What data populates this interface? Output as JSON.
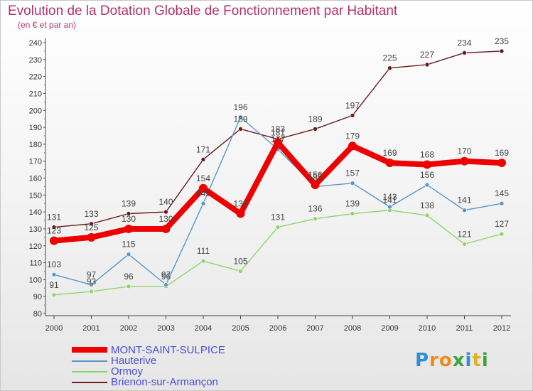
{
  "chart_data": {
    "type": "line",
    "title": "Evolution de la Dotation Globale de Fonctionnement par Habitant",
    "subtitle": "(en € et par an)",
    "x": [
      "2000",
      "2001",
      "2002",
      "2003",
      "2004",
      "2005",
      "2006",
      "2007",
      "2008",
      "2009",
      "2010",
      "2011",
      "2012"
    ],
    "ylim": [
      80,
      240
    ],
    "yticks": [
      80,
      90,
      100,
      110,
      120,
      130,
      140,
      150,
      160,
      170,
      180,
      190,
      200,
      210,
      220,
      230,
      240
    ],
    "grid": false,
    "legend_position": "bottom-left",
    "series": [
      {
        "name": "Brienon-sur-Armançon",
        "color": "#6b1a1a",
        "values": [
          131,
          133,
          139,
          140,
          171,
          189,
          183,
          189,
          197,
          225,
          227,
          234,
          235
        ]
      },
      {
        "name": "Ormoy",
        "color": "#8fd46a",
        "values": [
          91,
          93,
          96,
          96,
          111,
          105,
          131,
          136,
          139,
          141,
          138,
          121,
          127
        ]
      },
      {
        "name": "Hauterive",
        "color": "#5a96c8",
        "values": [
          103,
          97,
          115,
          97,
          145,
          196,
          177,
          155,
          157,
          143,
          156,
          141,
          145
        ]
      },
      {
        "name": "MONT-SAINT-SULPICE",
        "color": "#ee0000",
        "values": [
          123,
          125,
          130,
          130,
          154,
          139,
          181,
          156,
          179,
          169,
          168,
          170,
          169
        ]
      }
    ]
  },
  "legend": [
    {
      "label": "MONT-SAINT-SULPICE",
      "color": "#ee0000",
      "label_color": "#4b4bd9"
    },
    {
      "label": "Hauterive",
      "color": "#5a96c8",
      "label_color": "#4b4bd9"
    },
    {
      "label": "Ormoy",
      "color": "#8fd46a",
      "label_color": "#4b4bd9"
    },
    {
      "label": "Brienon-sur-Armançon",
      "color": "#6b1a1a",
      "label_color": "#4b4bd9"
    }
  ],
  "logo": {
    "text": "Proxiti",
    "letters": [
      "P",
      "r",
      "o",
      "x",
      "i",
      "t",
      "i"
    ],
    "letter_colors": [
      "#2c8fd6",
      "#f08a1c",
      "#f08a1c",
      "#3aa53a",
      "#2c8fd6",
      "#e0b020",
      "#3aa53a"
    ]
  }
}
